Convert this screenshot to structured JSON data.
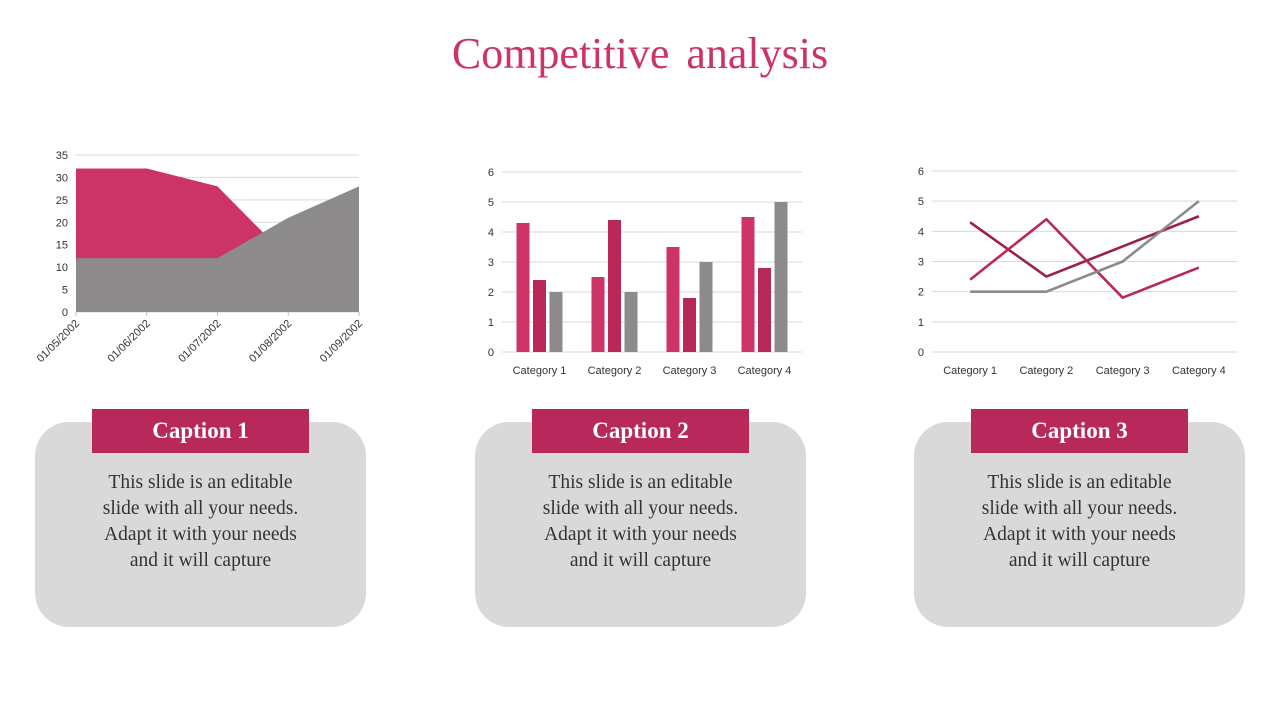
{
  "slide": {
    "title": "Competitive  analysis"
  },
  "colors": {
    "pink": "#cc3366",
    "crimson": "#b8285a",
    "dark_crimson": "#9b1f4e",
    "gray": "#8c8a8a",
    "card_bg": "#d9d9d9",
    "grid": "#d9d9d9"
  },
  "chart_data": [
    {
      "type": "area",
      "x": [
        "01/05/2002",
        "01/06/2002",
        "01/07/2002",
        "01/08/2002",
        "01/09/2002"
      ],
      "series": [
        {
          "values": [
            32,
            32,
            28,
            12,
            12
          ],
          "color": "#cc3366"
        },
        {
          "values": [
            12,
            12,
            12,
            21,
            28
          ],
          "color": "#8c8a8a"
        }
      ],
      "ylim": [
        0,
        35
      ],
      "yticks": [
        0,
        5,
        10,
        15,
        20,
        25,
        30,
        35
      ],
      "grid": true
    },
    {
      "type": "bar",
      "categories": [
        "Category 1",
        "Category 2",
        "Category 3",
        "Category 4"
      ],
      "series": [
        {
          "values": [
            4.3,
            2.5,
            3.5,
            4.5
          ],
          "color": "#cc3366"
        },
        {
          "values": [
            2.4,
            4.4,
            1.8,
            2.8
          ],
          "color": "#b8285a"
        },
        {
          "values": [
            2,
            2,
            3,
            5
          ],
          "color": "#8c8a8a"
        }
      ],
      "ylim": [
        0,
        6
      ],
      "yticks": [
        0,
        1,
        2,
        3,
        4,
        5,
        6
      ],
      "grid": true
    },
    {
      "type": "line",
      "categories": [
        "Category 1",
        "Category 2",
        "Category 3",
        "Category 4"
      ],
      "series": [
        {
          "values": [
            4.3,
            2.5,
            3.5,
            4.5
          ],
          "color": "#9b1f4e"
        },
        {
          "values": [
            2.4,
            4.4,
            1.8,
            2.8
          ],
          "color": "#b8285a"
        },
        {
          "values": [
            2,
            2,
            3,
            5
          ],
          "color": "#8c8a8a"
        }
      ],
      "ylim": [
        0,
        6
      ],
      "yticks": [
        0,
        1,
        2,
        3,
        4,
        5,
        6
      ],
      "grid": true
    }
  ],
  "captions": [
    {
      "label": "Caption 1",
      "lines": [
        "This slide is an editable",
        "slide with all your needs.",
        "Adapt it with your needs",
        "and it will capture"
      ]
    },
    {
      "label": "Caption 2",
      "lines": [
        "This slide is an editable",
        "slide with all your needs.",
        "Adapt it with your needs",
        "and it will capture"
      ]
    },
    {
      "label": "Caption 3",
      "lines": [
        "This slide is an editable",
        "slide with all your needs.",
        "Adapt it with your needs",
        "and it will capture"
      ]
    }
  ]
}
